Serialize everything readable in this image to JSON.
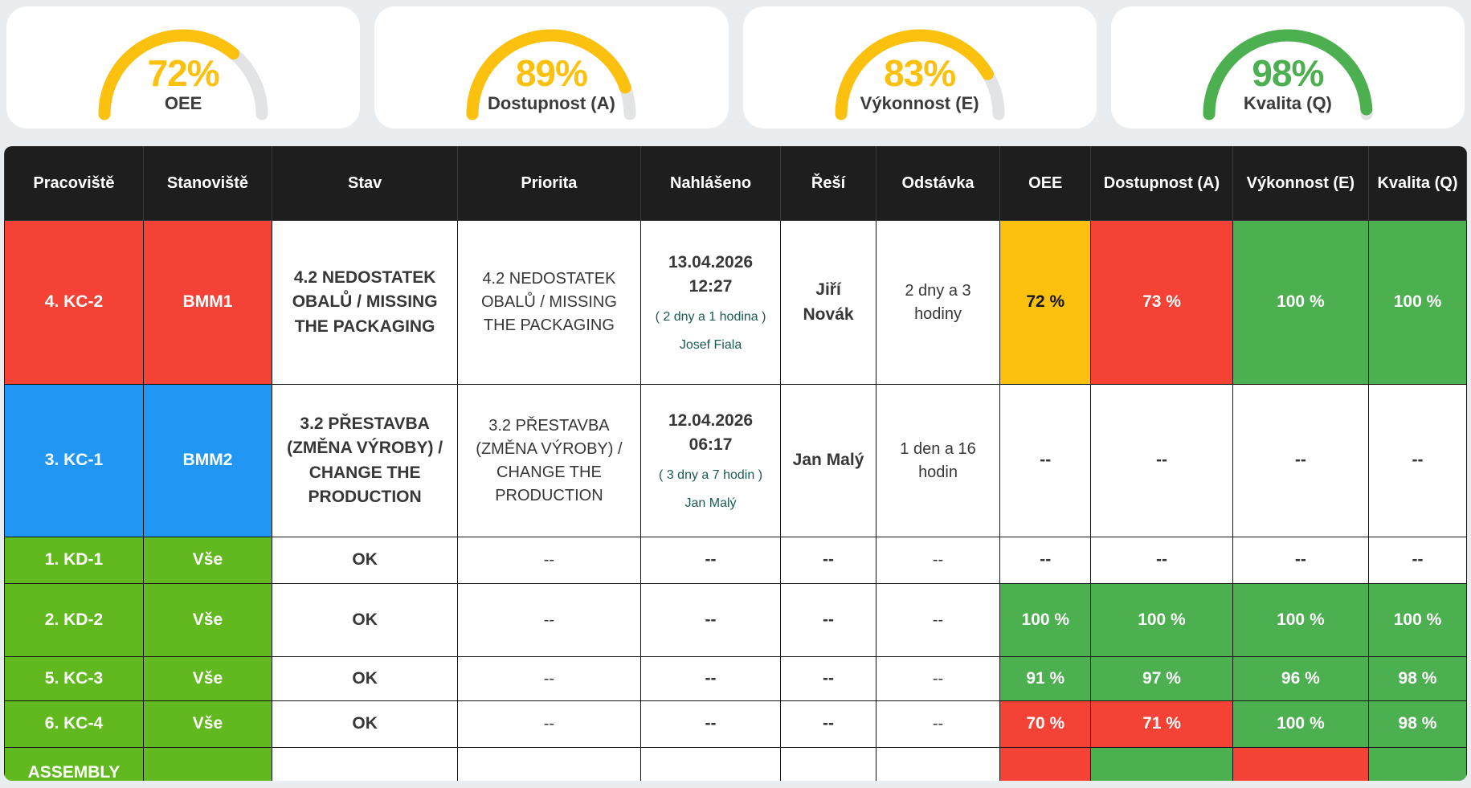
{
  "gauges": [
    {
      "value": "72%",
      "pct": 72,
      "label": "OEE",
      "color": "#fcc10e"
    },
    {
      "value": "89%",
      "pct": 89,
      "label": "Dostupnost (A)",
      "color": "#fcc10e"
    },
    {
      "value": "83%",
      "pct": 83,
      "label": "Výkonnost (E)",
      "color": "#fcc10e"
    },
    {
      "value": "98%",
      "pct": 98,
      "label": "Kvalita (Q)",
      "color": "#4caf50"
    }
  ],
  "palette": {
    "red": "#f44336",
    "blue": "#2196f3",
    "lime": "#62b81f",
    "green": "#4caf50",
    "yellow": "#fcc10e",
    "white": "#ffffff",
    "header": "#1e1e1e",
    "elapsed_text": "#1b5a52"
  },
  "table": {
    "columns": [
      "Pracoviště",
      "Stanoviště",
      "Stav",
      "Priorita",
      "Nahlášeno",
      "Řeší",
      "Odstávka",
      "OEE",
      "Dostupnost (A)",
      "Výkonnost (E)",
      "Kvalita (Q)"
    ],
    "rows": [
      {
        "pracoviste": {
          "text": "4. KC-2",
          "bg": "red"
        },
        "stanoviste": {
          "text": "BMM1",
          "bg": "red"
        },
        "stav": "4.2 NEDOSTATEK OBALŮ / MISSING THE PACKAGING",
        "priorita": "4.2 NEDOSTATEK OBALŮ / MISSING THE PACKAGING",
        "nahlaseno": {
          "datetime": "13.04.2026 12:27",
          "elapsed": "( 2 dny a 1 hodina )",
          "reporter": "Josef Fiala"
        },
        "resi": "Jiří Novák",
        "odstavka": "2 dny a 3 hodiny",
        "oee": {
          "text": "72 %",
          "bg": "yellow"
        },
        "dostupnost": {
          "text": "73 %",
          "bg": "red"
        },
        "vykonnost": {
          "text": "100 %",
          "bg": "green"
        },
        "kvalita": {
          "text": "100 %",
          "bg": "green"
        }
      },
      {
        "pracoviste": {
          "text": "3. KC-1",
          "bg": "blue"
        },
        "stanoviste": {
          "text": "BMM2",
          "bg": "blue"
        },
        "stav": "3.2 PŘESTAVBA (ZMĚNA VÝROBY) / CHANGE THE PRODUCTION",
        "priorita": "3.2 PŘESTAVBA (ZMĚNA VÝROBY) / CHANGE THE PRODUCTION",
        "nahlaseno": {
          "datetime": "12.04.2026 06:17",
          "elapsed": "( 3 dny a 7 hodin )",
          "reporter": "Jan Malý"
        },
        "resi": "Jan Malý",
        "odstavka": "1 den a 16 hodin",
        "oee": {
          "text": "--",
          "bg": "white"
        },
        "dostupnost": {
          "text": "--",
          "bg": "white"
        },
        "vykonnost": {
          "text": "--",
          "bg": "white"
        },
        "kvalita": {
          "text": "--",
          "bg": "white"
        }
      },
      {
        "pracoviste": {
          "text": "1. KD-1",
          "bg": "lime"
        },
        "stanoviste": {
          "text": "Vše",
          "bg": "lime"
        },
        "stav": "OK",
        "priorita": "--",
        "nahlaseno": {
          "datetime": "--",
          "elapsed": "",
          "reporter": ""
        },
        "resi": "--",
        "odstavka": "--",
        "oee": {
          "text": "--",
          "bg": "white"
        },
        "dostupnost": {
          "text": "--",
          "bg": "white"
        },
        "vykonnost": {
          "text": "--",
          "bg": "white"
        },
        "kvalita": {
          "text": "--",
          "bg": "white"
        }
      },
      {
        "pracoviste": {
          "text": "2. KD-2",
          "bg": "lime"
        },
        "stanoviste": {
          "text": "Vše",
          "bg": "lime"
        },
        "stav": "OK",
        "priorita": "--",
        "nahlaseno": {
          "datetime": "--",
          "elapsed": "",
          "reporter": ""
        },
        "resi": "--",
        "odstavka": "--",
        "oee": {
          "text": "100 %",
          "bg": "green"
        },
        "dostupnost": {
          "text": "100 %",
          "bg": "green"
        },
        "vykonnost": {
          "text": "100 %",
          "bg": "green"
        },
        "kvalita": {
          "text": "100 %",
          "bg": "green"
        }
      },
      {
        "pracoviste": {
          "text": "5. KC-3",
          "bg": "lime"
        },
        "stanoviste": {
          "text": "Vše",
          "bg": "lime"
        },
        "stav": "OK",
        "priorita": "--",
        "nahlaseno": {
          "datetime": "--",
          "elapsed": "",
          "reporter": ""
        },
        "resi": "--",
        "odstavka": "--",
        "oee": {
          "text": "91 %",
          "bg": "green"
        },
        "dostupnost": {
          "text": "97 %",
          "bg": "green"
        },
        "vykonnost": {
          "text": "96 %",
          "bg": "green"
        },
        "kvalita": {
          "text": "98 %",
          "bg": "green"
        }
      },
      {
        "pracoviste": {
          "text": "6. KC-4",
          "bg": "lime"
        },
        "stanoviste": {
          "text": "Vše",
          "bg": "lime"
        },
        "stav": "OK",
        "priorita": "--",
        "nahlaseno": {
          "datetime": "--",
          "elapsed": "",
          "reporter": ""
        },
        "resi": "--",
        "odstavka": "--",
        "oee": {
          "text": "70 %",
          "bg": "red"
        },
        "dostupnost": {
          "text": "71 %",
          "bg": "red"
        },
        "vykonnost": {
          "text": "100 %",
          "bg": "green"
        },
        "kvalita": {
          "text": "98 %",
          "bg": "green"
        }
      },
      {
        "pracoviste": {
          "text": "ASSEMBLY",
          "bg": "lime"
        },
        "stanoviste": {
          "text": "",
          "bg": "lime"
        },
        "stav": "",
        "priorita": "",
        "nahlaseno": {
          "datetime": "",
          "elapsed": "",
          "reporter": ""
        },
        "resi": "",
        "odstavka": "",
        "oee": {
          "text": "",
          "bg": "red"
        },
        "dostupnost": {
          "text": "",
          "bg": "green"
        },
        "vykonnost": {
          "text": "",
          "bg": "red"
        },
        "kvalita": {
          "text": "",
          "bg": "green"
        }
      }
    ]
  }
}
